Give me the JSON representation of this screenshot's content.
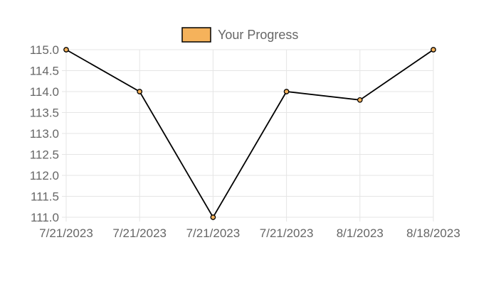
{
  "chart_data": {
    "type": "line",
    "categories": [
      "7/21/2023",
      "7/21/2023",
      "7/21/2023",
      "7/21/2023",
      "8/1/2023",
      "8/18/2023"
    ],
    "series": [
      {
        "name": "Your Progress",
        "values": [
          115.0,
          114.0,
          111.0,
          114.0,
          113.8,
          115.0
        ]
      }
    ],
    "y_ticks": [
      "115.0",
      "114.5",
      "114.0",
      "113.5",
      "113.0",
      "112.5",
      "112.0",
      "111.5",
      "111.0"
    ],
    "ylim": [
      111.0,
      115.0
    ],
    "grid": true,
    "legend_position": "top-center",
    "colors": {
      "line": "#000000",
      "point_fill": "#f5b25b",
      "legend_fill": "#f5b25b",
      "grid": "#e5e5e5",
      "text": "#666666"
    }
  }
}
